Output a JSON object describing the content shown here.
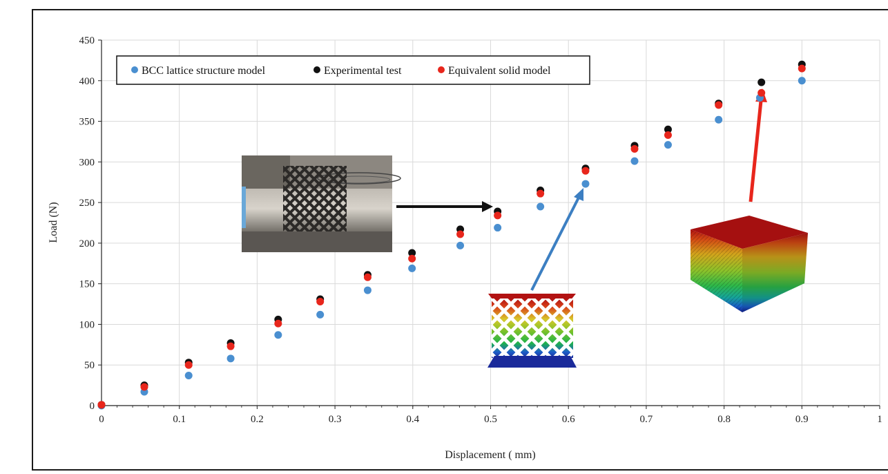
{
  "chart_data": {
    "type": "scatter",
    "xlabel": "Displacement ( mm)",
    "ylabel": "Load (N)",
    "xlim": [
      0,
      1
    ],
    "ylim": [
      0,
      450
    ],
    "x_ticks": [
      "0",
      "0.1",
      "0.2",
      "0.3",
      "0.4",
      "0.5",
      "0.6",
      "0.7",
      "0.8",
      "0.9",
      "1"
    ],
    "y_ticks": [
      "0",
      "50",
      "100",
      "150",
      "200",
      "250",
      "300",
      "350",
      "400",
      "450"
    ],
    "grid": true,
    "legend_position": "top-left",
    "series": [
      {
        "name": "BCC lattice structure model",
        "color": "#4a8fd0",
        "points": [
          [
            0,
            0
          ],
          [
            0.055,
            17
          ],
          [
            0.112,
            37
          ],
          [
            0.166,
            58
          ],
          [
            0.227,
            87
          ],
          [
            0.281,
            112
          ],
          [
            0.342,
            142
          ],
          [
            0.399,
            169
          ],
          [
            0.461,
            197
          ],
          [
            0.509,
            219
          ],
          [
            0.564,
            245
          ],
          [
            0.622,
            273
          ],
          [
            0.685,
            301
          ],
          [
            0.728,
            321
          ],
          [
            0.793,
            352
          ],
          [
            0.846,
            379
          ],
          [
            0.9,
            400
          ]
        ]
      },
      {
        "name": "Experimental test",
        "color": "#111111",
        "points": [
          [
            0,
            1
          ],
          [
            0.055,
            25
          ],
          [
            0.112,
            53
          ],
          [
            0.166,
            77
          ],
          [
            0.227,
            106
          ],
          [
            0.281,
            131
          ],
          [
            0.342,
            161
          ],
          [
            0.399,
            188
          ],
          [
            0.461,
            217
          ],
          [
            0.509,
            239
          ],
          [
            0.564,
            265
          ],
          [
            0.622,
            292
          ],
          [
            0.685,
            320
          ],
          [
            0.728,
            340
          ],
          [
            0.793,
            372
          ],
          [
            0.848,
            398
          ],
          [
            0.9,
            420
          ]
        ]
      },
      {
        "name": "Equivalent solid model",
        "color": "#e8261c",
        "points": [
          [
            0,
            1
          ],
          [
            0.055,
            23
          ],
          [
            0.112,
            50
          ],
          [
            0.166,
            73
          ],
          [
            0.227,
            101
          ],
          [
            0.281,
            128
          ],
          [
            0.342,
            158
          ],
          [
            0.399,
            181
          ],
          [
            0.461,
            211
          ],
          [
            0.509,
            234
          ],
          [
            0.564,
            261
          ],
          [
            0.622,
            289
          ],
          [
            0.685,
            316
          ],
          [
            0.728,
            333
          ],
          [
            0.793,
            370
          ],
          [
            0.848,
            385
          ],
          [
            0.9,
            415
          ]
        ]
      }
    ],
    "insets": [
      {
        "name": "experimental-photo",
        "arrow_color": "#111111"
      },
      {
        "name": "lattice-fea-model",
        "arrow_color": "#3c7fc2"
      },
      {
        "name": "solid-fea-model",
        "arrow_color": "#e8261c"
      }
    ]
  }
}
